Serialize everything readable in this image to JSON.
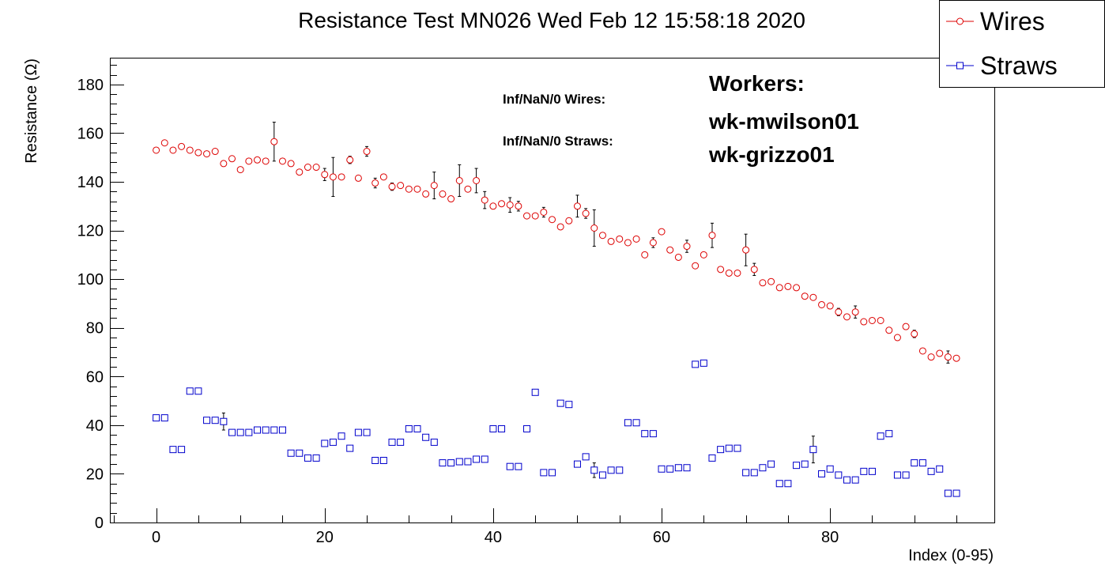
{
  "chart_data": {
    "type": "scatter",
    "title": "Resistance Test MN026 Wed Feb 12 15:58:18 2020",
    "xlabel": "Index (0-95)",
    "ylabel": "Resistance (Ω)",
    "xlim": [
      -5.5,
      99.5
    ],
    "ylim": [
      0,
      191
    ],
    "xticks": [
      0,
      20,
      40,
      60,
      80
    ],
    "yticks": [
      0,
      20,
      40,
      60,
      80,
      100,
      120,
      140,
      160,
      180
    ],
    "grid": false,
    "legend_position": "top-right",
    "series": [
      {
        "name": "Wires",
        "color": "#dd0000",
        "marker": "open-circle",
        "x": [
          0,
          1,
          2,
          3,
          4,
          5,
          6,
          7,
          8,
          9,
          10,
          11,
          12,
          13,
          14,
          15,
          16,
          17,
          18,
          19,
          20,
          21,
          22,
          23,
          24,
          25,
          26,
          27,
          28,
          29,
          30,
          31,
          32,
          33,
          34,
          35,
          36,
          37,
          38,
          39,
          40,
          41,
          42,
          43,
          44,
          45,
          46,
          47,
          48,
          49,
          50,
          51,
          52,
          53,
          54,
          55,
          56,
          57,
          58,
          59,
          60,
          61,
          62,
          63,
          64,
          65,
          66,
          67,
          68,
          69,
          70,
          71,
          72,
          73,
          74,
          75,
          76,
          77,
          78,
          79,
          80,
          81,
          82,
          83,
          84,
          85,
          86,
          87,
          88,
          89,
          90,
          91,
          92,
          93,
          94,
          95
        ],
        "y": [
          153,
          156,
          153,
          154.5,
          153,
          152,
          151.5,
          152.5,
          147.5,
          149.5,
          145,
          148.5,
          149,
          148.5,
          156.5,
          148.5,
          147.5,
          144,
          146,
          146,
          143,
          142,
          142,
          149,
          141.5,
          152.5,
          139.5,
          142,
          138,
          138.5,
          137,
          137,
          135,
          138.5,
          135,
          133,
          140.5,
          137,
          140.5,
          132.5,
          130,
          131,
          130.5,
          130,
          126,
          126,
          127.5,
          124.5,
          121.5,
          124,
          130,
          127,
          121,
          118,
          115.5,
          116.5,
          115,
          116.5,
          110,
          115,
          119.5,
          112,
          109,
          113.5,
          105.5,
          110,
          118,
          104,
          102.5,
          102.5,
          112,
          104,
          98.5,
          99,
          96.5,
          97,
          96.5,
          93,
          92.5,
          89.5,
          89,
          86.5,
          84.5,
          86.5,
          82.5,
          83,
          83,
          79,
          76,
          80.5,
          77.5,
          70.5,
          68,
          69.5,
          68,
          67.5
        ],
        "error": [
          0,
          0,
          0,
          0,
          0,
          0,
          0,
          0,
          0,
          0,
          0,
          0,
          0,
          0,
          8,
          0,
          0,
          0,
          0,
          0,
          2.5,
          8,
          0,
          1.5,
          0,
          2,
          2,
          0,
          1.5,
          0,
          0,
          0,
          0,
          5.5,
          0,
          0,
          6.5,
          0,
          5,
          3.5,
          0,
          0,
          3,
          2,
          0,
          0,
          2,
          0,
          0,
          0,
          4.5,
          2,
          7.5,
          0,
          0,
          0,
          0,
          0,
          0,
          2,
          0,
          0,
          0,
          2.5,
          0,
          0,
          5,
          0,
          0,
          0,
          6.5,
          2.5,
          0,
          0,
          0,
          0,
          0,
          0,
          0,
          0,
          0,
          1.5,
          0,
          2.5,
          0,
          0,
          0,
          0,
          0,
          0,
          1.5,
          0,
          0,
          0,
          2.5,
          0
        ]
      },
      {
        "name": "Straws",
        "color": "#0000cc",
        "marker": "open-square",
        "x": [
          0,
          1,
          2,
          3,
          4,
          5,
          6,
          7,
          8,
          9,
          10,
          11,
          12,
          13,
          14,
          15,
          16,
          17,
          18,
          19,
          20,
          21,
          22,
          23,
          24,
          25,
          26,
          27,
          28,
          29,
          30,
          31,
          32,
          33,
          34,
          35,
          36,
          37,
          38,
          39,
          40,
          41,
          42,
          43,
          44,
          45,
          46,
          47,
          48,
          49,
          50,
          51,
          52,
          53,
          54,
          55,
          56,
          57,
          58,
          59,
          60,
          61,
          62,
          63,
          64,
          65,
          66,
          67,
          68,
          69,
          70,
          71,
          72,
          73,
          74,
          75,
          76,
          77,
          78,
          79,
          80,
          81,
          82,
          83,
          84,
          85,
          86,
          87,
          88,
          89,
          90,
          91,
          92,
          93,
          94,
          95
        ],
        "y": [
          43,
          43,
          30,
          30,
          54,
          54,
          42,
          42,
          41.5,
          37,
          37,
          37,
          38,
          38,
          38,
          38,
          28.5,
          28.5,
          26.5,
          26.5,
          32.5,
          33,
          35.5,
          30.5,
          37,
          37,
          25.5,
          25.5,
          33,
          33,
          38.5,
          38.5,
          35,
          33,
          24.5,
          24.5,
          25,
          25,
          26,
          26,
          38.5,
          38.5,
          23,
          23,
          38.5,
          53.5,
          20.5,
          20.5,
          49,
          48.5,
          24,
          27,
          21.5,
          19.5,
          21.5,
          21.5,
          41,
          41,
          36.5,
          36.5,
          22,
          22,
          22.5,
          22.5,
          65,
          65.5,
          26.5,
          30,
          30.5,
          30.5,
          20.5,
          20.5,
          22.5,
          24,
          16,
          16,
          23.5,
          24,
          30,
          20,
          22,
          19.5,
          17.5,
          17.5,
          21,
          21,
          35.5,
          36.5,
          19.5,
          19.5,
          24.5,
          24.5,
          21,
          22,
          12,
          12
        ],
        "error": [
          0,
          0,
          0,
          0,
          0,
          0,
          0,
          0,
          3.5,
          0,
          0,
          0,
          0,
          0,
          0,
          0,
          0,
          0,
          0,
          0,
          0,
          0,
          0,
          0,
          0,
          0,
          0,
          0,
          0,
          0,
          0,
          0,
          0,
          0,
          0,
          0,
          0,
          0,
          0,
          0,
          0,
          0,
          0,
          0,
          0,
          0,
          0,
          0,
          0,
          0,
          0,
          0,
          3,
          0,
          0,
          0,
          0,
          0,
          0,
          0,
          0,
          0,
          0,
          0,
          0,
          0,
          0,
          0,
          0,
          0,
          0,
          0,
          0,
          0,
          0,
          0,
          0,
          0,
          5.5,
          0,
          0,
          0,
          0,
          0,
          0,
          0,
          0,
          0,
          0,
          0,
          0,
          0,
          0,
          0,
          0,
          0
        ]
      }
    ]
  },
  "annotations": {
    "inf_wires": "Inf/NaN/0 Wires:",
    "inf_straws": "Inf/NaN/0 Straws:",
    "workers_title": "Workers:",
    "worker_1": "wk-mwilson01",
    "worker_2": "wk-grizzo01"
  }
}
